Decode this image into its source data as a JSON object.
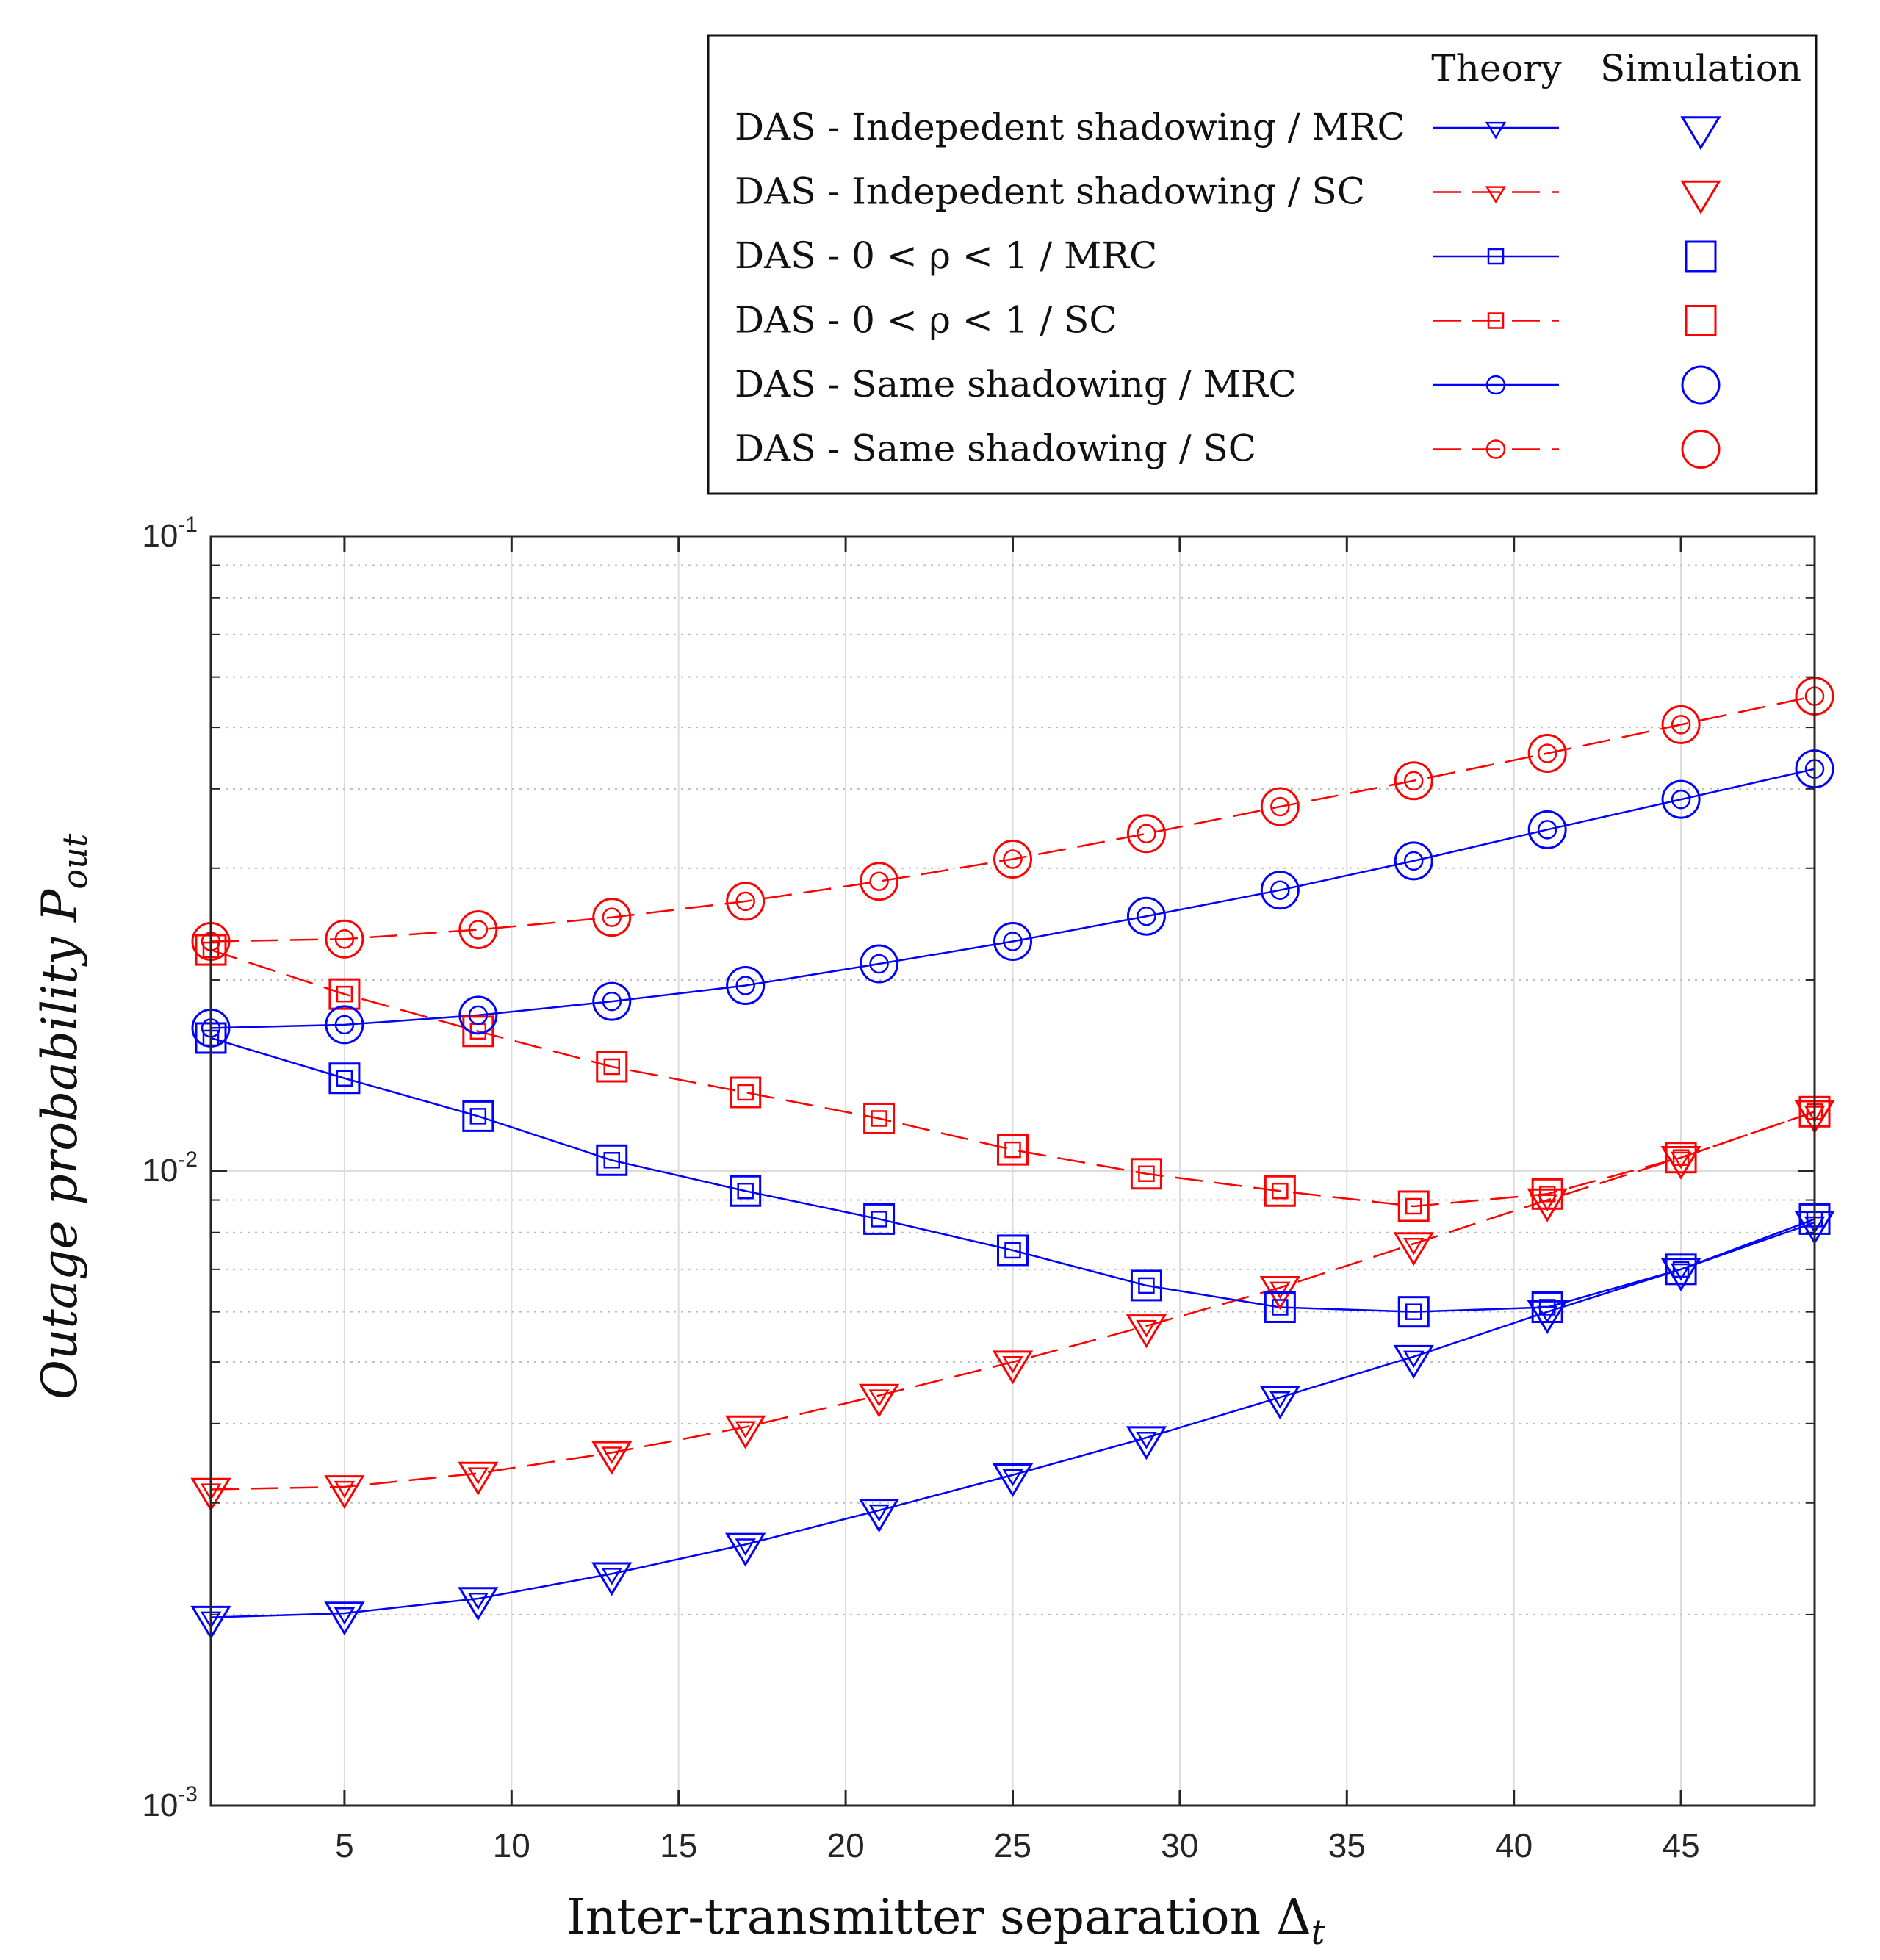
{
  "chart_data": {
    "type": "line",
    "title": "",
    "xlabel": "Inter-transmitter separation Δ",
    "xlabel_sub": "t",
    "ylabel": "Outage probability P",
    "ylabel_sub": "out",
    "xlim": [
      1,
      49
    ],
    "ylim": [
      0.001,
      0.1
    ],
    "yscale": "log",
    "grid": true,
    "x_ticks": [
      5,
      10,
      15,
      20,
      25,
      30,
      35,
      40,
      45
    ],
    "y_ticks": [
      {
        "value": 0.001,
        "base": "10",
        "exp": "-3"
      },
      {
        "value": 0.01,
        "base": "10",
        "exp": "-2"
      },
      {
        "value": 0.1,
        "base": "10",
        "exp": "-1"
      }
    ],
    "x": [
      1,
      5,
      9,
      13,
      17,
      21,
      25,
      29,
      33,
      37,
      41,
      45,
      49
    ],
    "legend": {
      "position": "top-right",
      "col_theory": "Theory",
      "col_simulation": "Simulation"
    },
    "series": [
      {
        "name": "DAS - Indepedent shadowing / MRC",
        "color": "#0000ff",
        "dash": "solid",
        "marker": "triangle-down",
        "values": [
          0.00198,
          0.00201,
          0.00212,
          0.00232,
          0.00258,
          0.00292,
          0.00332,
          0.0038,
          0.0044,
          0.0051,
          0.006,
          0.007,
          0.0083
        ]
      },
      {
        "name": "DAS - Indepedent shadowing / SC",
        "color": "#ff0000",
        "dash": "dashed",
        "marker": "triangle-down",
        "values": [
          0.00315,
          0.00318,
          0.00334,
          0.0036,
          0.00395,
          0.00443,
          0.005,
          0.0057,
          0.00655,
          0.00768,
          0.009,
          0.0105,
          0.0124
        ]
      },
      {
        "name": "DAS - 0 < ρ < 1 / MRC",
        "color": "#0000ff",
        "dash": "solid",
        "marker": "square",
        "values": [
          0.0162,
          0.014,
          0.0122,
          0.0104,
          0.0093,
          0.0084,
          0.0075,
          0.0066,
          0.0061,
          0.006,
          0.0061,
          0.007,
          0.0084
        ]
      },
      {
        "name": "DAS - 0 < ρ < 1 / SC",
        "color": "#ff0000",
        "dash": "dashed",
        "marker": "square",
        "values": [
          0.0223,
          0.019,
          0.0166,
          0.0146,
          0.0133,
          0.0121,
          0.0108,
          0.0099,
          0.0093,
          0.0088,
          0.0092,
          0.0105,
          0.0124
        ]
      },
      {
        "name": "DAS - Same shadowing / MRC",
        "color": "#0000ff",
        "dash": "solid",
        "marker": "circle",
        "values": [
          0.0168,
          0.017,
          0.0176,
          0.0185,
          0.0196,
          0.0212,
          0.023,
          0.0252,
          0.0277,
          0.0308,
          0.0345,
          0.0385,
          0.043
        ]
      },
      {
        "name": "DAS - Same shadowing / SC",
        "color": "#ff0000",
        "dash": "dashed",
        "marker": "circle",
        "values": [
          0.023,
          0.0232,
          0.024,
          0.0251,
          0.0266,
          0.0286,
          0.031,
          0.034,
          0.0375,
          0.0412,
          0.0455,
          0.0505,
          0.056
        ]
      }
    ]
  }
}
